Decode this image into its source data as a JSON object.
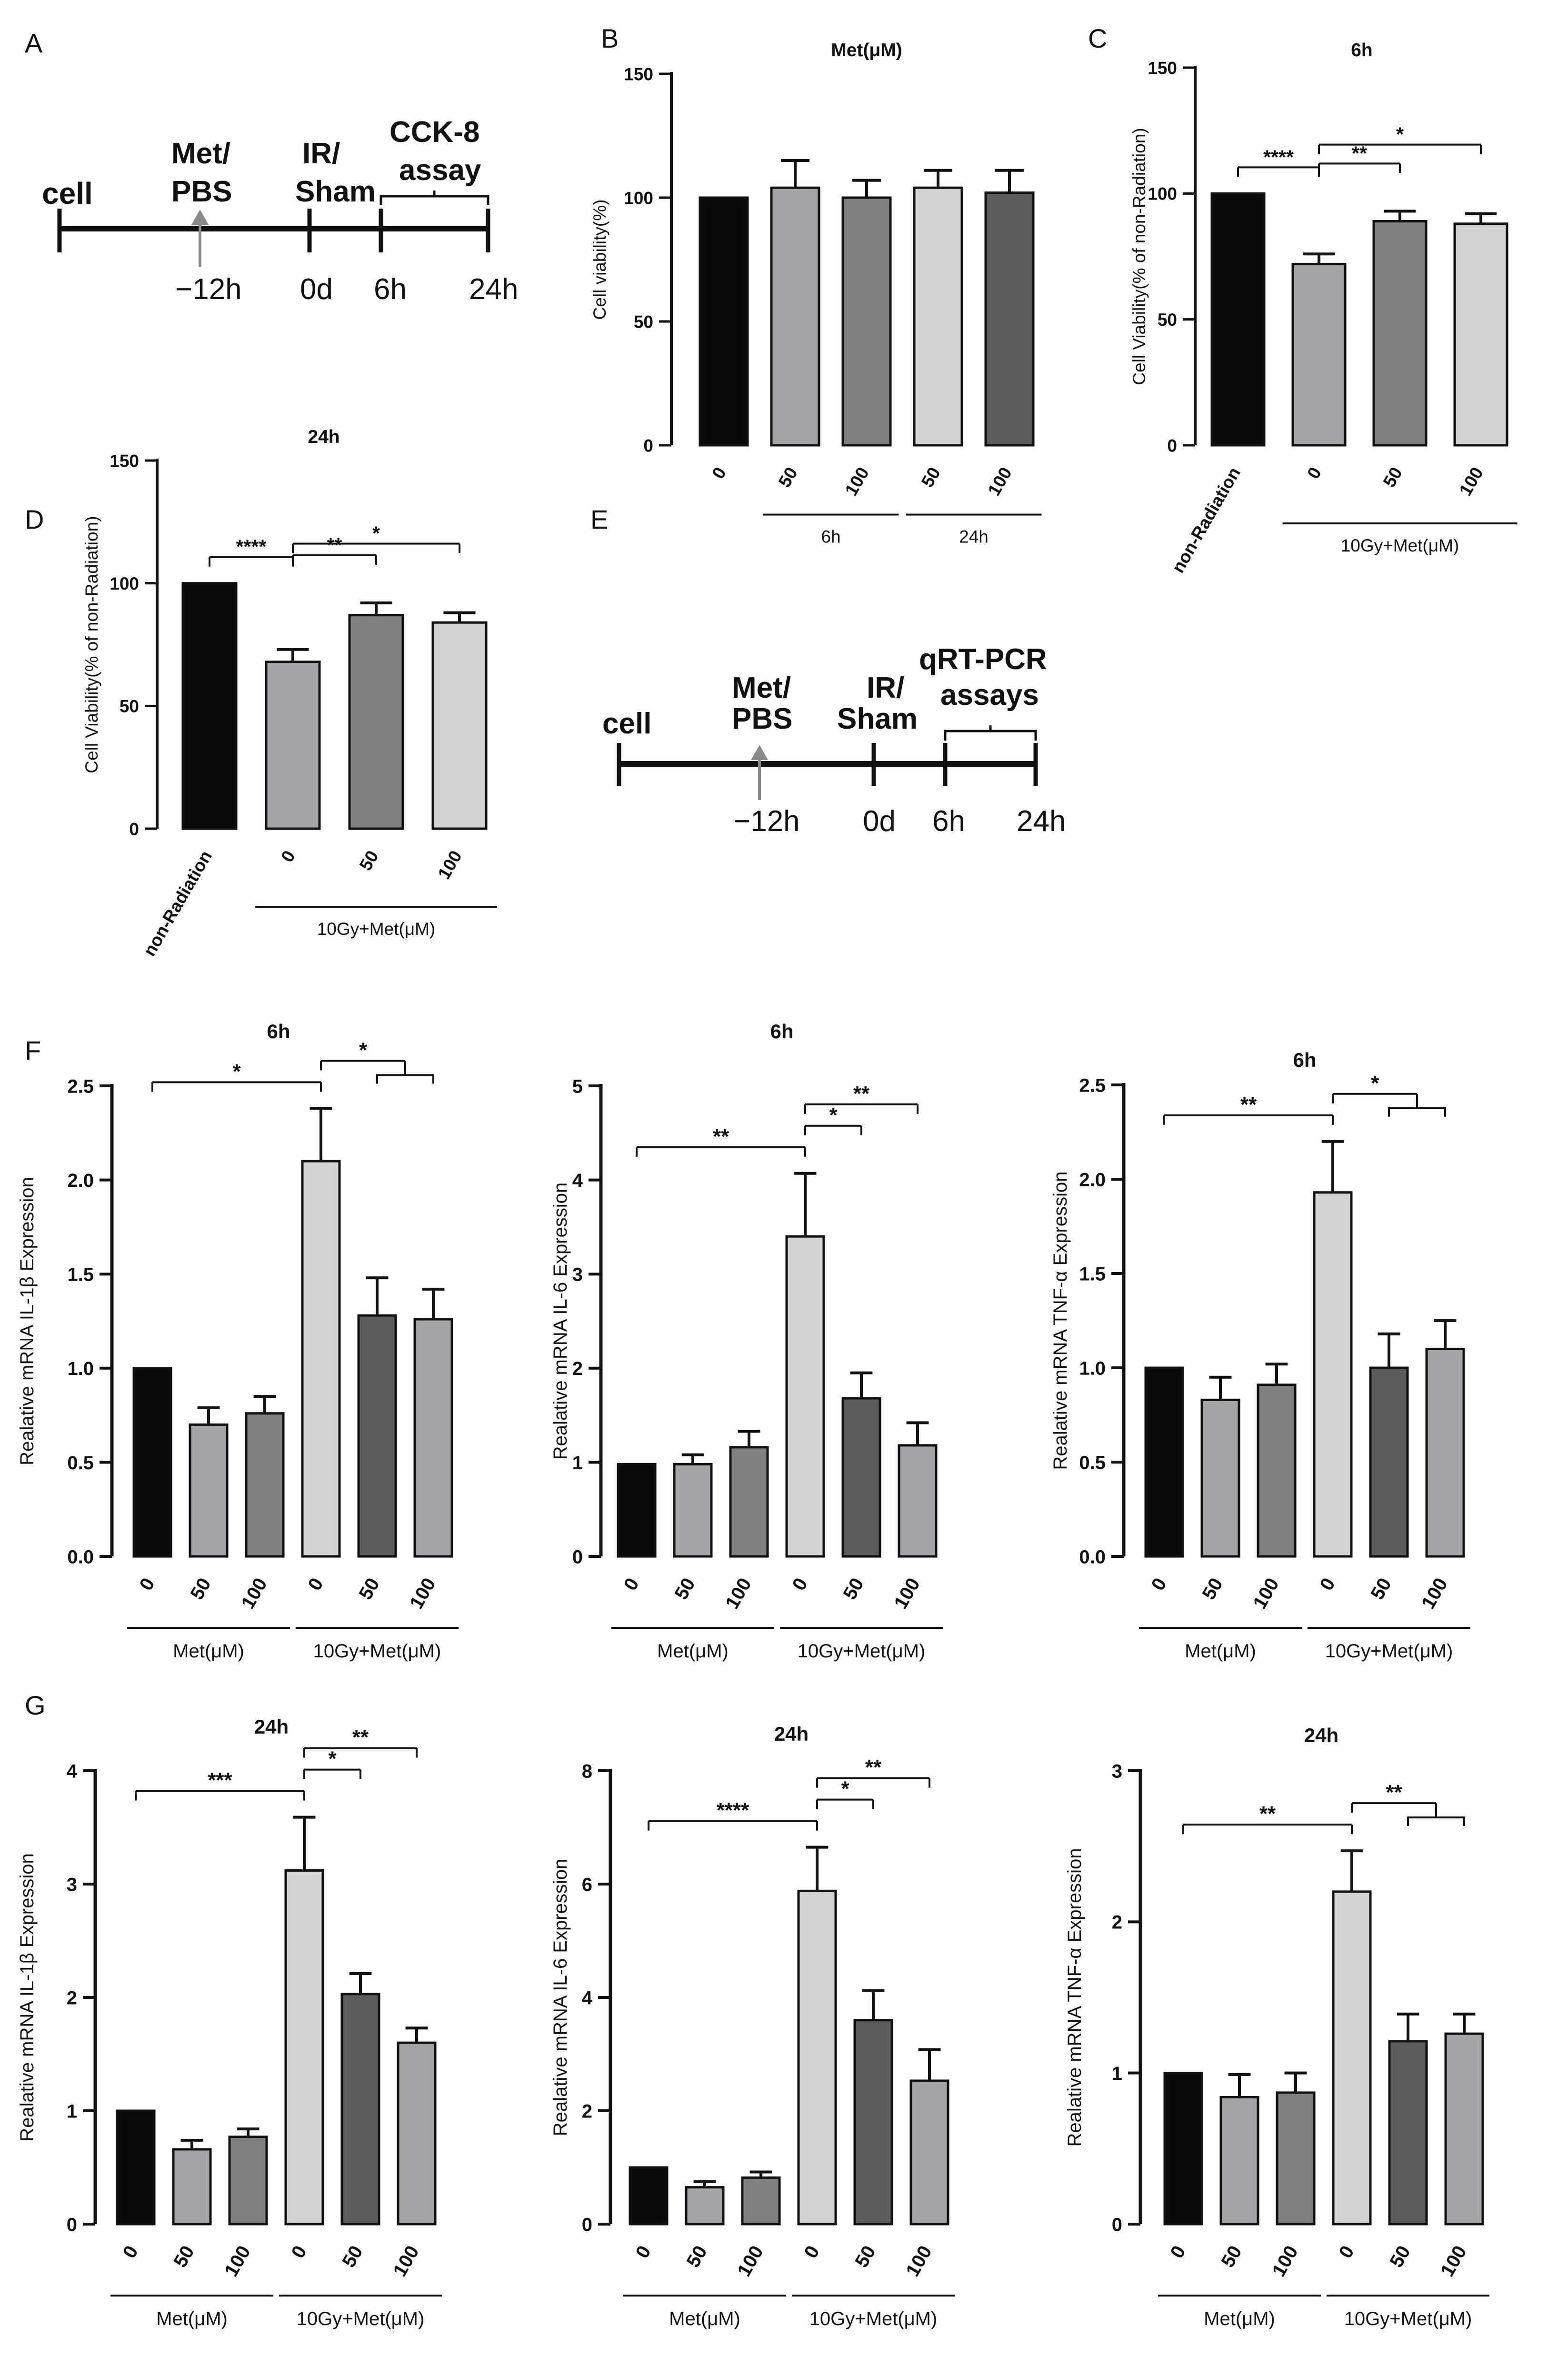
{
  "panel_letters": [
    "A",
    "B",
    "C",
    "D",
    "E",
    "F",
    "G"
  ],
  "timelines": [
    {
      "name": "A",
      "start_label": "cell",
      "treatment_label": [
        "Met/",
        "PBS"
      ],
      "ir_label": [
        "IR/",
        "Sham"
      ],
      "assay_label": [
        "CCK-8",
        "assay"
      ],
      "tick_labels": [
        "−12h",
        "0d",
        "6h",
        "24h"
      ]
    },
    {
      "name": "E",
      "start_label": "cell",
      "treatment_label": [
        "Met/",
        "PBS"
      ],
      "ir_label": [
        "IR/",
        "Sham"
      ],
      "assay_label": [
        "qRT-PCR",
        "assays"
      ],
      "tick_labels": [
        "−12h",
        "0d",
        "6h",
        "24h"
      ]
    }
  ],
  "chart_data": [
    {
      "id": "B",
      "type": "bar",
      "title": "Met(μM)",
      "ylabel": "Cell viability(%)",
      "ylim": [
        0,
        150
      ],
      "yticks": [
        0,
        50,
        100,
        150
      ],
      "categories": [
        "0",
        "50",
        "100",
        "50",
        "100"
      ],
      "values": [
        100,
        104,
        100,
        104,
        102
      ],
      "errors": [
        0,
        11,
        7,
        7,
        9
      ],
      "colors": [
        "#0a0a0a",
        "#a5a5a9",
        "#808083",
        "#d4d4d4",
        "#5c5c5c"
      ],
      "groups": [
        {
          "label": "6h",
          "from": 1,
          "to": 2
        },
        {
          "label": "24h",
          "from": 3,
          "to": 4
        }
      ],
      "significance": []
    },
    {
      "id": "C",
      "type": "bar",
      "title": "6h",
      "ylabel": "Cell Viability(% of non-Radiation)",
      "ylim": [
        0,
        150
      ],
      "yticks": [
        0,
        50,
        100,
        150
      ],
      "categories": [
        "non-Radiation",
        "0",
        "50",
        "100"
      ],
      "values": [
        100,
        72,
        89,
        88
      ],
      "errors": [
        0,
        4,
        4,
        4
      ],
      "colors": [
        "#0a0a0a",
        "#a5a5a9",
        "#808083",
        "#d4d4d4"
      ],
      "groups": [
        {
          "label": "10Gy+Met(μM)",
          "from": 1,
          "to": 3
        }
      ],
      "significance": [
        {
          "from": 0,
          "to": 1,
          "label": "****"
        },
        {
          "from": 1,
          "to": 2,
          "label": "**"
        },
        {
          "from": 1,
          "to": 3,
          "label": "*"
        }
      ]
    },
    {
      "id": "D",
      "type": "bar",
      "title": "24h",
      "ylabel": "Cell Viability(% of non-Radiation)",
      "ylim": [
        0,
        150
      ],
      "yticks": [
        0,
        50,
        100,
        150
      ],
      "categories": [
        "non-Radiation",
        "0",
        "50",
        "100"
      ],
      "values": [
        100,
        68,
        87,
        84
      ],
      "errors": [
        0,
        5,
        5,
        4
      ],
      "colors": [
        "#0a0a0a",
        "#a5a5a9",
        "#808083",
        "#d4d4d4"
      ],
      "groups": [
        {
          "label": "10Gy+Met(μM)",
          "from": 1,
          "to": 3
        }
      ],
      "significance": [
        {
          "from": 0,
          "to": 1,
          "label": "****"
        },
        {
          "from": 1,
          "to": 2,
          "label": "**"
        },
        {
          "from": 1,
          "to": 3,
          "label": "*"
        }
      ]
    },
    {
      "id": "F1",
      "type": "bar",
      "title": "6h",
      "ylabel": "Realative mRNA IL-1β Expression",
      "ylim": [
        0,
        2.5
      ],
      "yticks": [
        "0.0",
        "0.5",
        "1.0",
        "1.5",
        "2.0",
        "2.5"
      ],
      "categories": [
        "0",
        "50",
        "100",
        "0",
        "50",
        "100"
      ],
      "values": [
        1.0,
        0.7,
        0.76,
        2.1,
        1.28,
        1.26
      ],
      "errors": [
        0,
        0.09,
        0.09,
        0.28,
        0.2,
        0.16
      ],
      "colors": [
        "#0a0a0a",
        "#a5a5a9",
        "#808083",
        "#d4d4d4",
        "#5c5c5c",
        "#a5a5a9"
      ],
      "groups": [
        {
          "label": "Met(μM)",
          "from": 0,
          "to": 2
        },
        {
          "label": "10Gy+Met(μM)",
          "from": 3,
          "to": 5
        }
      ],
      "significance": [
        {
          "from": 0,
          "to": 3,
          "label": "*"
        },
        {
          "from": 3,
          "to": [
            4,
            5
          ],
          "label": "*"
        }
      ]
    },
    {
      "id": "F2",
      "type": "bar",
      "title": "6h",
      "ylabel": "Realative mRNA IL-6 Expression",
      "ylim": [
        0,
        5
      ],
      "yticks": [
        "0",
        "1",
        "2",
        "3",
        "4",
        "5"
      ],
      "categories": [
        "0",
        "50",
        "100",
        "0",
        "50",
        "100"
      ],
      "values": [
        0.98,
        0.98,
        1.16,
        3.4,
        1.68,
        1.18
      ],
      "errors": [
        0,
        0.1,
        0.17,
        0.67,
        0.27,
        0.24
      ],
      "colors": [
        "#0a0a0a",
        "#a5a5a9",
        "#808083",
        "#d4d4d4",
        "#5c5c5c",
        "#a5a5a9"
      ],
      "groups": [
        {
          "label": "Met(μM)",
          "from": 0,
          "to": 2
        },
        {
          "label": "10Gy+Met(μM)",
          "from": 3,
          "to": 5
        }
      ],
      "significance": [
        {
          "from": 0,
          "to": 3,
          "label": "**"
        },
        {
          "from": 3,
          "to": 4,
          "label": "*"
        },
        {
          "from": 3,
          "to": 5,
          "label": "**"
        }
      ]
    },
    {
      "id": "F3",
      "type": "bar",
      "title": "6h",
      "ylabel": "Realative mRNA TNF-α Expression",
      "ylim": [
        0,
        2.5
      ],
      "yticks": [
        "0.0",
        "0.5",
        "1.0",
        "1.5",
        "2.0",
        "2.5"
      ],
      "categories": [
        "0",
        "50",
        "100",
        "0",
        "50",
        "100"
      ],
      "values": [
        1.0,
        0.83,
        0.91,
        1.93,
        1.0,
        1.1
      ],
      "errors": [
        0,
        0.12,
        0.11,
        0.27,
        0.18,
        0.15
      ],
      "colors": [
        "#0a0a0a",
        "#a5a5a9",
        "#808083",
        "#d4d4d4",
        "#5c5c5c",
        "#a5a5a9"
      ],
      "groups": [
        {
          "label": "Met(μM)",
          "from": 0,
          "to": 2
        },
        {
          "label": "10Gy+Met(μM)",
          "from": 3,
          "to": 5
        }
      ],
      "significance": [
        {
          "from": 0,
          "to": 3,
          "label": "**"
        },
        {
          "from": 3,
          "to": [
            4,
            5
          ],
          "label": "*"
        }
      ]
    },
    {
      "id": "G1",
      "type": "bar",
      "title": "24h",
      "ylabel": "Realative mRNA IL-1β Expression",
      "ylim": [
        0,
        4
      ],
      "yticks": [
        "0",
        "1",
        "2",
        "3",
        "4"
      ],
      "categories": [
        "0",
        "50",
        "100",
        "0",
        "50",
        "100"
      ],
      "values": [
        1.0,
        0.66,
        0.77,
        3.12,
        2.03,
        1.6
      ],
      "errors": [
        0,
        0.08,
        0.07,
        0.47,
        0.18,
        0.13
      ],
      "colors": [
        "#0a0a0a",
        "#a5a5a9",
        "#808083",
        "#d4d4d4",
        "#5c5c5c",
        "#a5a5a9"
      ],
      "groups": [
        {
          "label": "Met(μM)",
          "from": 0,
          "to": 2
        },
        {
          "label": "10Gy+Met(μM)",
          "from": 3,
          "to": 5
        }
      ],
      "significance": [
        {
          "from": 0,
          "to": 3,
          "label": "***"
        },
        {
          "from": 3,
          "to": 4,
          "label": "*"
        },
        {
          "from": 3,
          "to": 5,
          "label": "**"
        }
      ]
    },
    {
      "id": "G2",
      "type": "bar",
      "title": "24h",
      "ylabel": "Realative mRNA IL-6 Expression",
      "ylim": [
        0,
        8
      ],
      "yticks": [
        "0",
        "2",
        "4",
        "6",
        "8"
      ],
      "categories": [
        "0",
        "50",
        "100",
        "0",
        "50",
        "100"
      ],
      "values": [
        1.0,
        0.65,
        0.82,
        5.88,
        3.6,
        2.53
      ],
      "errors": [
        0,
        0.1,
        0.1,
        0.77,
        0.52,
        0.55
      ],
      "colors": [
        "#0a0a0a",
        "#a5a5a9",
        "#808083",
        "#d4d4d4",
        "#5c5c5c",
        "#a5a5a9"
      ],
      "groups": [
        {
          "label": "Met(μM)",
          "from": 0,
          "to": 2
        },
        {
          "label": "10Gy+Met(μM)",
          "from": 3,
          "to": 5
        }
      ],
      "significance": [
        {
          "from": 0,
          "to": 3,
          "label": "****"
        },
        {
          "from": 3,
          "to": 4,
          "label": "*"
        },
        {
          "from": 3,
          "to": 5,
          "label": "**"
        }
      ]
    },
    {
      "id": "G3",
      "type": "bar",
      "title": "24h",
      "ylabel": "Realative mRNA TNF-α Expression",
      "ylim": [
        0,
        3
      ],
      "yticks": [
        "0",
        "1",
        "2",
        "3"
      ],
      "categories": [
        "0",
        "50",
        "100",
        "0",
        "50",
        "100"
      ],
      "values": [
        1.0,
        0.84,
        0.87,
        2.2,
        1.21,
        1.26
      ],
      "errors": [
        0,
        0.15,
        0.13,
        0.27,
        0.18,
        0.13
      ],
      "colors": [
        "#0a0a0a",
        "#a5a5a9",
        "#808083",
        "#d4d4d4",
        "#5c5c5c",
        "#a5a5a9"
      ],
      "groups": [
        {
          "label": "Met(μM)",
          "from": 0,
          "to": 2
        },
        {
          "label": "10Gy+Met(μM)",
          "from": 3,
          "to": 5
        }
      ],
      "significance": [
        {
          "from": 0,
          "to": 3,
          "label": "**"
        },
        {
          "from": 3,
          "to": [
            4,
            5
          ],
          "label": "**"
        }
      ]
    }
  ]
}
